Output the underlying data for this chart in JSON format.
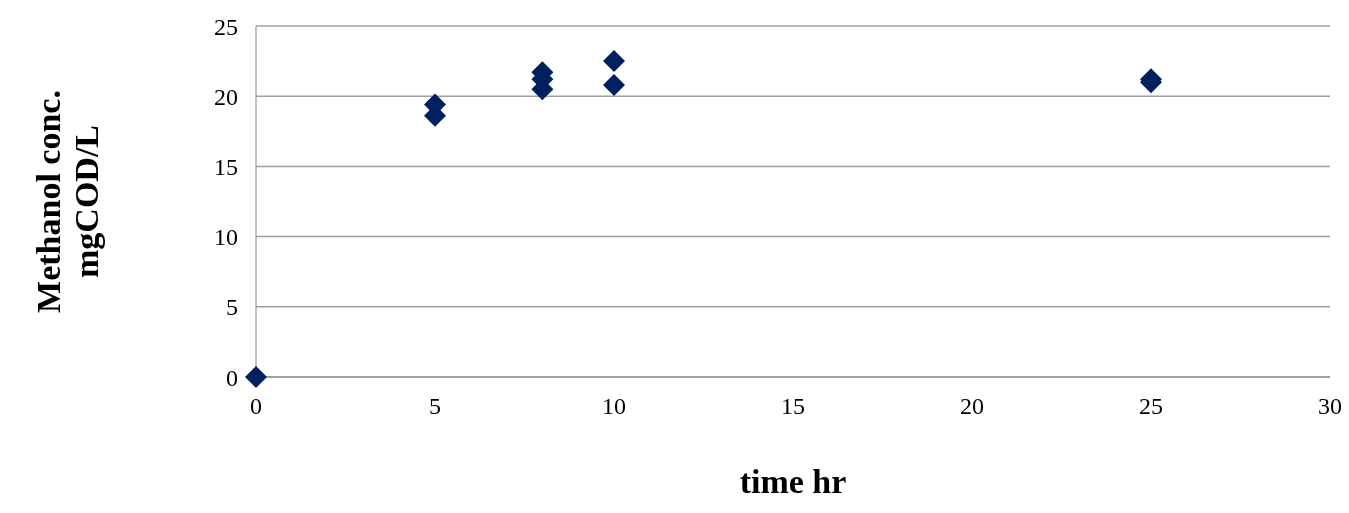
{
  "chart_data": {
    "type": "scatter",
    "xlabel": "time hr",
    "ylabel": "Methanol conc.\nmgCOD/L",
    "series": [
      {
        "color": "#002060",
        "x": [
          0,
          5,
          5,
          8,
          8,
          8,
          10,
          10,
          25,
          25
        ],
        "values": [
          0,
          19.4,
          18.6,
          21.7,
          21.2,
          20.5,
          22.5,
          20.8,
          21.2,
          21.0
        ]
      }
    ],
    "xlim": [
      0,
      30
    ],
    "xticks": [
      0,
      5,
      10,
      15,
      20,
      25,
      30
    ],
    "ylim": [
      0,
      25
    ],
    "yticks": [
      0,
      5,
      10,
      15,
      20,
      25
    ],
    "grid": "y",
    "marker": "diamond"
  }
}
